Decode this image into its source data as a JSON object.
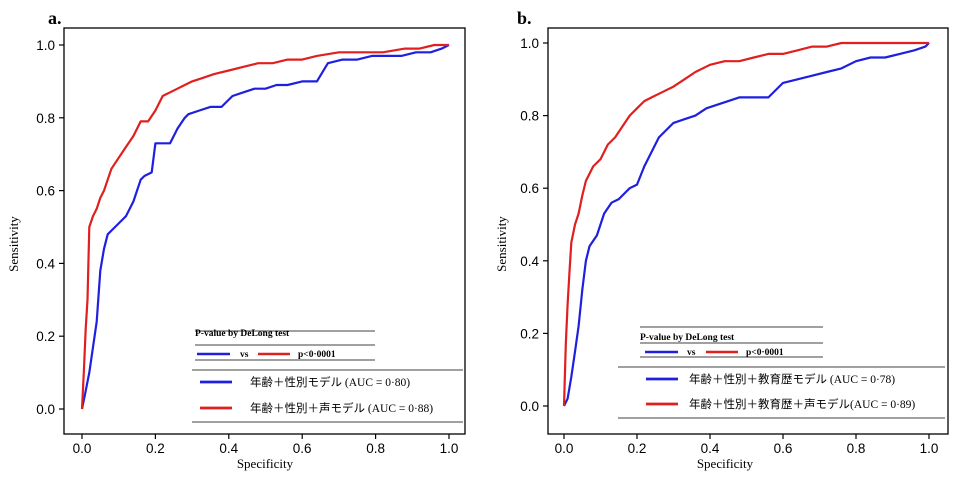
{
  "chart_data": [
    {
      "type": "line",
      "panel_label": "a.",
      "xlabel": "Specificity",
      "ylabel": "Sensitivity",
      "xlim": [
        0,
        1
      ],
      "ylim": [
        0,
        1
      ],
      "x_ticks": [
        "0.0",
        "0.2",
        "0.4",
        "0.6",
        "0.8",
        "1.0"
      ],
      "y_ticks": [
        "0.0",
        "0.2",
        "0.4",
        "0.6",
        "0.8",
        "1.0"
      ],
      "grid": false,
      "legend_placement": "bottom-right",
      "pvalue_box": {
        "title": "P-value by DeLong test",
        "vs": "vs",
        "p": "p<0·0001",
        "left_color": "#1f1fe0",
        "right_color": "#e01f1f"
      },
      "series": [
        {
          "name": "年齢＋性別モデル (AUC = 0·80)",
          "color": "#1f1fe0",
          "x": [
            0,
            0.01,
            0.02,
            0.03,
            0.04,
            0.05,
            0.06,
            0.07,
            0.08,
            0.1,
            0.12,
            0.14,
            0.16,
            0.17,
            0.19,
            0.2,
            0.24,
            0.26,
            0.28,
            0.29,
            0.32,
            0.35,
            0.38,
            0.41,
            0.44,
            0.47,
            0.5,
            0.53,
            0.56,
            0.6,
            0.64,
            0.67,
            0.71,
            0.75,
            0.79,
            0.83,
            0.87,
            0.91,
            0.95,
            0.98,
            1.0
          ],
          "y": [
            0,
            0.05,
            0.1,
            0.17,
            0.24,
            0.38,
            0.44,
            0.48,
            0.49,
            0.51,
            0.53,
            0.57,
            0.63,
            0.64,
            0.65,
            0.73,
            0.73,
            0.77,
            0.8,
            0.81,
            0.82,
            0.83,
            0.83,
            0.86,
            0.87,
            0.88,
            0.88,
            0.89,
            0.89,
            0.9,
            0.9,
            0.95,
            0.96,
            0.96,
            0.97,
            0.97,
            0.97,
            0.98,
            0.98,
            0.99,
            1.0
          ]
        },
        {
          "name": "年齢＋性別＋声モデル (AUC = 0·88)",
          "color": "#e01f1f",
          "x": [
            0,
            0.005,
            0.01,
            0.015,
            0.02,
            0.03,
            0.04,
            0.05,
            0.06,
            0.07,
            0.08,
            0.1,
            0.12,
            0.14,
            0.16,
            0.18,
            0.2,
            0.22,
            0.24,
            0.26,
            0.28,
            0.3,
            0.33,
            0.36,
            0.4,
            0.44,
            0.48,
            0.52,
            0.56,
            0.6,
            0.64,
            0.7,
            0.76,
            0.82,
            0.88,
            0.92,
            0.96,
            1.0
          ],
          "y": [
            0,
            0.1,
            0.22,
            0.3,
            0.5,
            0.53,
            0.55,
            0.58,
            0.6,
            0.63,
            0.66,
            0.69,
            0.72,
            0.75,
            0.79,
            0.79,
            0.82,
            0.86,
            0.87,
            0.88,
            0.89,
            0.9,
            0.91,
            0.92,
            0.93,
            0.94,
            0.95,
            0.95,
            0.96,
            0.96,
            0.97,
            0.98,
            0.98,
            0.98,
            0.99,
            0.99,
            1.0,
            1.0
          ]
        }
      ]
    },
    {
      "type": "line",
      "panel_label": "b.",
      "xlabel": "Specificity",
      "ylabel": "Sensitivity",
      "xlim": [
        0,
        1
      ],
      "ylim": [
        0,
        1
      ],
      "x_ticks": [
        "0.0",
        "0.2",
        "0.4",
        "0.6",
        "0.8",
        "1.0"
      ],
      "y_ticks": [
        "0.0",
        "0.2",
        "0.4",
        "0.6",
        "0.8",
        "1.0"
      ],
      "grid": false,
      "legend_placement": "bottom-right",
      "pvalue_box": {
        "title": "P-value by DeLong test",
        "vs": "vs",
        "p": "p<0·0001",
        "left_color": "#1f1fe0",
        "right_color": "#e01f1f"
      },
      "series": [
        {
          "name": "年齢＋性別＋教育歴モデル (AUC = 0·78)",
          "color": "#1f1fe0",
          "x": [
            0,
            0.01,
            0.02,
            0.03,
            0.04,
            0.05,
            0.06,
            0.07,
            0.09,
            0.11,
            0.13,
            0.15,
            0.18,
            0.2,
            0.22,
            0.24,
            0.26,
            0.28,
            0.3,
            0.33,
            0.36,
            0.39,
            0.42,
            0.45,
            0.48,
            0.52,
            0.56,
            0.6,
            0.64,
            0.68,
            0.72,
            0.76,
            0.8,
            0.84,
            0.88,
            0.92,
            0.96,
            0.99,
            1.0
          ],
          "y": [
            0,
            0.02,
            0.08,
            0.15,
            0.22,
            0.32,
            0.4,
            0.44,
            0.47,
            0.53,
            0.56,
            0.57,
            0.6,
            0.61,
            0.66,
            0.7,
            0.74,
            0.76,
            0.78,
            0.79,
            0.8,
            0.82,
            0.83,
            0.84,
            0.85,
            0.85,
            0.85,
            0.89,
            0.9,
            0.91,
            0.92,
            0.93,
            0.95,
            0.96,
            0.96,
            0.97,
            0.98,
            0.99,
            1.0
          ]
        },
        {
          "name": "年齢＋性別＋教育歴＋声モデル(AUC = 0·89)",
          "color": "#e01f1f",
          "x": [
            0,
            0.005,
            0.01,
            0.015,
            0.02,
            0.03,
            0.04,
            0.05,
            0.06,
            0.07,
            0.08,
            0.1,
            0.12,
            0.14,
            0.16,
            0.18,
            0.2,
            0.22,
            0.24,
            0.26,
            0.28,
            0.3,
            0.33,
            0.36,
            0.4,
            0.44,
            0.48,
            0.52,
            0.56,
            0.6,
            0.64,
            0.68,
            0.72,
            0.76,
            0.8,
            0.86,
            0.92,
            0.97,
            1.0
          ],
          "y": [
            0,
            0.17,
            0.28,
            0.37,
            0.45,
            0.5,
            0.53,
            0.58,
            0.62,
            0.64,
            0.66,
            0.68,
            0.72,
            0.74,
            0.77,
            0.8,
            0.82,
            0.84,
            0.85,
            0.86,
            0.87,
            0.88,
            0.9,
            0.92,
            0.94,
            0.95,
            0.95,
            0.96,
            0.97,
            0.97,
            0.98,
            0.99,
            0.99,
            1.0,
            1.0,
            1.0,
            1.0,
            1.0,
            1.0
          ]
        }
      ]
    }
  ]
}
